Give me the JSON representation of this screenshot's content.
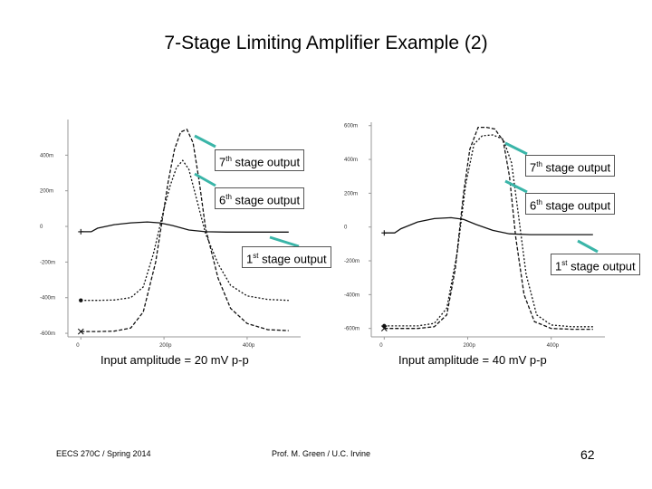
{
  "slide": {
    "title": "7-Stage Limiting Amplifier Example (2)",
    "footer_left": "EECS 270C / Spring 2014",
    "footer_center": "Prof. M. Green / U.C. Irvine",
    "page_number": "62"
  },
  "callouts": {
    "stage7_prefix": "7",
    "stage7_sup": "th",
    "stage7_text": " stage output",
    "stage6_prefix": "6",
    "stage6_sup": "th",
    "stage6_text": " stage output",
    "stage1_prefix": "1",
    "stage1_sup": "st",
    "stage1_text": " stage output"
  },
  "colors": {
    "callout_line": "#3ab5a8",
    "trace": "#111111",
    "axis": "#999999"
  },
  "chart_data": [
    {
      "type": "line",
      "caption": "Input amplitude = 20 mV p-p",
      "x_ticks": [
        "0",
        "200p",
        "400p"
      ],
      "x_tick_values": [
        0,
        200,
        400
      ],
      "y_ticks": [
        "400m",
        "200m",
        "0",
        "-200m",
        "-400m",
        "-600m"
      ],
      "y_tick_values": [
        400,
        200,
        0,
        -200,
        -400,
        -600
      ],
      "ylim": [
        -620,
        600
      ],
      "xlim": [
        -5,
        520
      ],
      "series": [
        {
          "x": [
            0,
            40,
            80,
            120,
            150,
            180,
            200,
            210,
            225,
            240,
            255,
            270,
            285,
            300,
            330,
            360,
            400,
            450,
            500
          ],
          "y": [
            -590,
            -590,
            -588,
            -570,
            -480,
            -200,
            100,
            250,
            430,
            530,
            545,
            470,
            250,
            -10,
            -290,
            -460,
            -545,
            -580,
            -585
          ]
        },
        {
          "x": [
            0,
            40,
            80,
            120,
            150,
            175,
            200,
            215,
            230,
            245,
            260,
            280,
            300,
            330,
            360,
            400,
            450,
            500
          ],
          "y": [
            -415,
            -415,
            -413,
            -400,
            -340,
            -150,
            100,
            230,
            330,
            370,
            320,
            140,
            -40,
            -210,
            -330,
            -390,
            -410,
            -415
          ]
        },
        {
          "x": [
            0,
            25,
            40,
            80,
            120,
            160,
            190,
            220,
            260,
            300,
            350,
            400,
            500
          ],
          "y": [
            -30,
            -30,
            -10,
            10,
            20,
            25,
            20,
            5,
            -20,
            -30,
            -32,
            -32,
            -32
          ]
        }
      ]
    },
    {
      "type": "line",
      "caption": "Input amplitude = 40 mV p-p",
      "x_ticks": [
        "0",
        "200p",
        "400p"
      ],
      "x_tick_values": [
        0,
        200,
        400
      ],
      "y_ticks": [
        "600m",
        "400m",
        "200m",
        "0",
        "-200m",
        "-400m",
        "-600m"
      ],
      "y_tick_values": [
        600,
        400,
        200,
        0,
        -200,
        -400,
        -600
      ],
      "ylim": [
        -650,
        620
      ],
      "xlim": [
        -5,
        520
      ],
      "series": [
        {
          "x": [
            0,
            40,
            80,
            120,
            150,
            170,
            190,
            205,
            225,
            245,
            265,
            285,
            300,
            315,
            335,
            360,
            400,
            450,
            500
          ],
          "y": [
            -600,
            -600,
            -600,
            -590,
            -520,
            -250,
            200,
            460,
            590,
            590,
            580,
            510,
            300,
            -60,
            -400,
            -560,
            -600,
            -605,
            -605
          ]
        },
        {
          "x": [
            0,
            40,
            80,
            120,
            150,
            175,
            195,
            215,
            235,
            260,
            285,
            305,
            320,
            340,
            365,
            400,
            450,
            500
          ],
          "y": [
            -585,
            -585,
            -585,
            -570,
            -480,
            -150,
            250,
            490,
            540,
            545,
            520,
            380,
            100,
            -280,
            -520,
            -580,
            -590,
            -590
          ]
        },
        {
          "x": [
            0,
            25,
            40,
            80,
            120,
            160,
            190,
            220,
            260,
            300,
            350,
            400,
            500
          ],
          "y": [
            -35,
            -35,
            -10,
            30,
            50,
            55,
            45,
            15,
            -20,
            -40,
            -45,
            -45,
            -45
          ]
        }
      ]
    }
  ]
}
